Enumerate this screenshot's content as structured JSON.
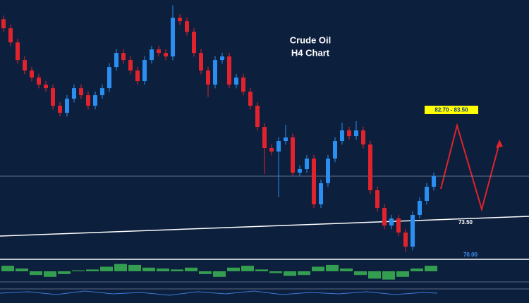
{
  "chart_data": {
    "type": "candlestick",
    "title": "Crude Oil",
    "subtitle": "H4 Chart",
    "target_label": "82.70 - 83.50",
    "support_label": "73.50",
    "level": {
      "value": 70,
      "label": "70.00"
    },
    "ylim": [
      70,
      94.3
    ],
    "up_color": "#2a8ff0",
    "down_color": "#e0232c",
    "open": [
      92.5,
      91.65,
      90.33,
      88.68,
      87.69,
      87.03,
      86.37,
      86.04,
      84.39,
      83.73,
      85.05,
      86.04,
      85.38,
      84.39,
      85.38,
      86.04,
      88.02,
      89.34,
      88.68,
      87.69,
      86.7,
      88.68,
      89.67,
      89.34,
      89.01,
      92.64,
      92.31,
      91.32,
      89.34,
      87.69,
      86.37,
      88.68,
      89.01,
      86.37,
      87.03,
      85.71,
      84.39,
      82.41,
      80.43,
      80.1,
      81.09,
      81.42,
      78.12,
      78.45,
      79.44,
      75.15,
      77.13,
      79.44,
      81.09,
      82.08,
      81.55,
      82.08,
      80.76,
      76.47,
      74.82,
      73.17,
      73.83,
      72.51,
      71.19,
      74.16,
      75.48,
      76.8
    ],
    "high": [
      92.85,
      92.0,
      90.68,
      89.03,
      88.04,
      87.38,
      86.72,
      86.39,
      84.74,
      85.4,
      86.39,
      86.39,
      85.73,
      85.73,
      86.39,
      88.37,
      89.69,
      89.69,
      89.03,
      88.04,
      89.03,
      90.02,
      90.02,
      89.69,
      93.8,
      92.99,
      92.66,
      91.67,
      89.69,
      88.04,
      89.03,
      89.36,
      89.36,
      87.38,
      87.38,
      86.06,
      84.74,
      82.76,
      80.78,
      81.44,
      82.6,
      81.77,
      78.8,
      79.79,
      79.79,
      77.48,
      79.79,
      81.44,
      82.8,
      82.43,
      82.95,
      82.43,
      81.11,
      76.82,
      75.17,
      74.18,
      74.18,
      72.86,
      74.51,
      75.83,
      77.15,
      78.14
    ],
    "low": [
      91.3,
      89.98,
      88.33,
      87.34,
      86.68,
      86.02,
      85.69,
      84.04,
      83.38,
      83.38,
      84.7,
      85.03,
      84.04,
      84.04,
      85.03,
      85.69,
      87.67,
      88.33,
      87.34,
      86.35,
      86.35,
      88.33,
      88.99,
      88.66,
      88.66,
      91.96,
      90.97,
      88.99,
      87.34,
      85.2,
      86.02,
      88.33,
      86.02,
      86.02,
      85.36,
      84.04,
      82.06,
      78.0,
      79.75,
      75.8,
      80.74,
      77.77,
      77.77,
      78.1,
      74.8,
      74.8,
      76.78,
      79.09,
      80.74,
      81.2,
      81.2,
      80.41,
      76.12,
      74.47,
      72.82,
      72.82,
      72.16,
      70.7,
      70.84,
      73.81,
      75.13,
      76.45
    ],
    "close": [
      91.65,
      90.33,
      88.68,
      87.69,
      87.03,
      86.37,
      86.04,
      84.39,
      83.73,
      85.05,
      86.04,
      85.38,
      84.39,
      85.38,
      86.04,
      88.02,
      89.34,
      88.68,
      87.69,
      86.7,
      88.68,
      89.67,
      89.34,
      89.01,
      92.64,
      92.31,
      91.32,
      89.34,
      87.69,
      86.37,
      88.68,
      89.01,
      86.37,
      87.03,
      85.71,
      84.39,
      82.41,
      80.43,
      80.1,
      81.09,
      81.42,
      78.12,
      78.45,
      79.44,
      75.15,
      77.13,
      79.44,
      81.09,
      82.08,
      81.55,
      82.08,
      80.76,
      76.47,
      74.82,
      73.17,
      73.83,
      72.51,
      71.19,
      74.16,
      75.48,
      76.8,
      77.79
    ],
    "oscillator": {
      "color": "#3cb554",
      "ylim": [
        -1,
        1
      ],
      "values": [
        0.6,
        0.3,
        -0.4,
        -0.6,
        -0.3,
        0.1,
        0.2,
        0.5,
        0.8,
        0.7,
        0.4,
        0.3,
        0.2,
        0.4,
        -0.3,
        -0.6,
        0.4,
        0.6,
        0.2,
        -0.2,
        -0.5,
        -0.4,
        0.5,
        0.7,
        0.3,
        -0.4,
        -0.8,
        -0.9,
        -0.6,
        0.3,
        0.6
      ]
    }
  }
}
